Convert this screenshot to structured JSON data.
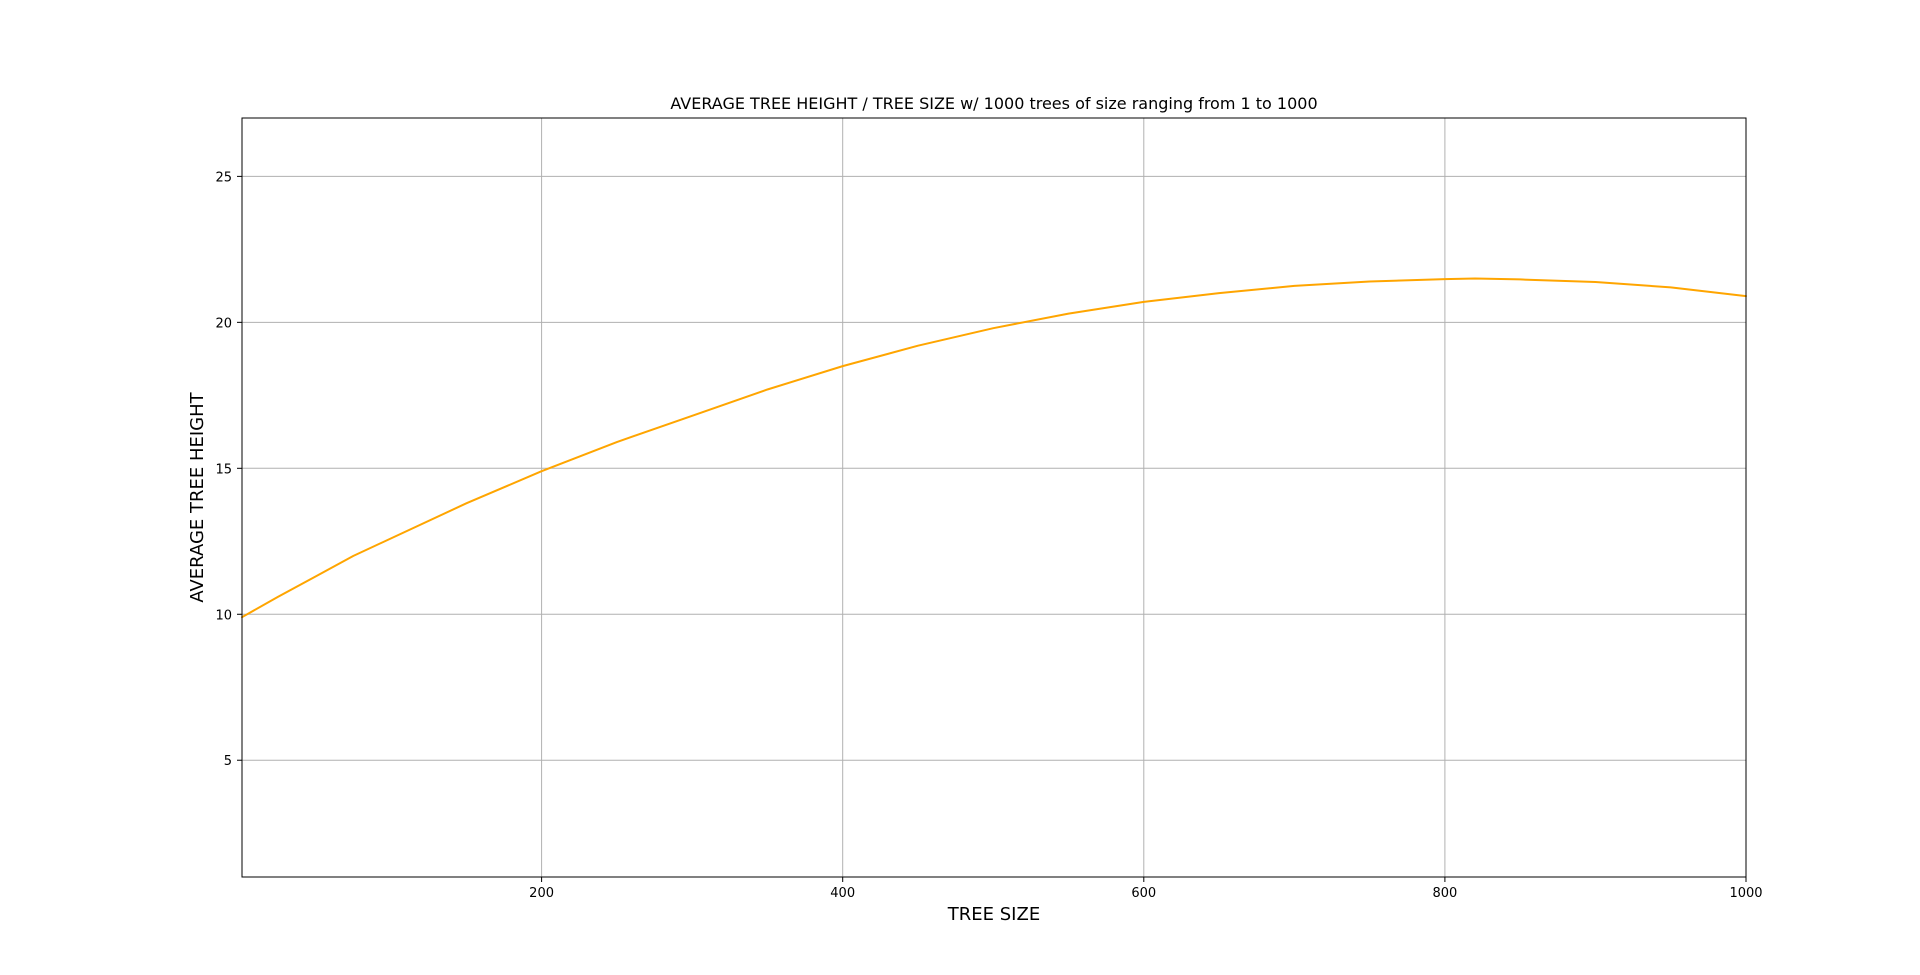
{
  "chart_data": {
    "type": "line",
    "title": "AVERAGE TREE HEIGHT / TREE SIZE w/ 1000 trees of size ranging from 1 to 1000",
    "xlabel": "TREE SIZE",
    "ylabel": "AVERAGE TREE HEIGHT",
    "xlim": [
      1,
      1000
    ],
    "ylim": [
      1,
      27
    ],
    "xticks": [
      200,
      400,
      600,
      800,
      1000
    ],
    "yticks": [
      5,
      10,
      15,
      20,
      25
    ],
    "grid": true,
    "legend": "none",
    "series": [
      {
        "color": "#ffa500",
        "x": [
          1,
          25,
          50,
          75,
          100,
          150,
          200,
          250,
          300,
          350,
          400,
          450,
          500,
          550,
          600,
          650,
          700,
          750,
          800,
          820,
          850,
          900,
          950,
          1000
        ],
        "y": [
          9.9,
          10.6,
          11.3,
          12.0,
          12.6,
          13.8,
          14.9,
          15.9,
          16.8,
          17.7,
          18.5,
          19.2,
          19.8,
          20.3,
          20.7,
          21.0,
          21.25,
          21.4,
          21.48,
          21.5,
          21.47,
          21.38,
          21.2,
          20.9
        ]
      }
    ]
  }
}
